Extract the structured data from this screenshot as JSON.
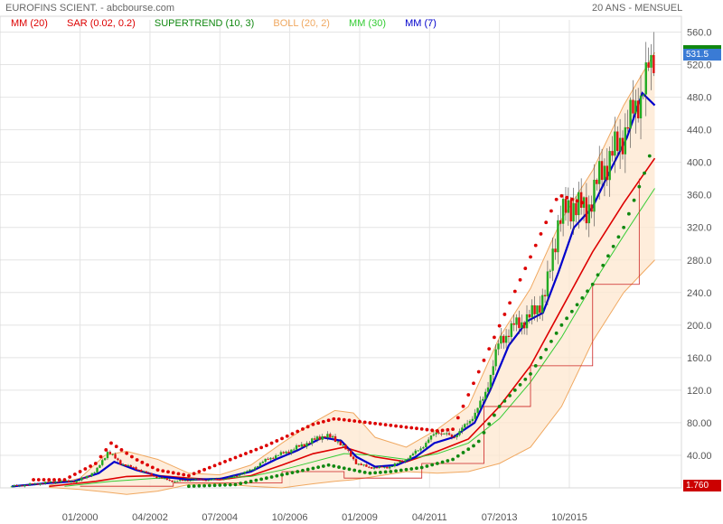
{
  "header": {
    "title": "EUROFINS SCIENT. - abcbourse.com",
    "period": "20 ANS - MENSUEL"
  },
  "legend": [
    {
      "label": "MM (20)",
      "color": "#dd0000"
    },
    {
      "label": "SAR (0.02, 0.2)",
      "color": "#dd0000"
    },
    {
      "label": "SUPERTREND (10, 3)",
      "color": "#118811"
    },
    {
      "label": "BOLL (20, 2)",
      "color": "#f0a860"
    },
    {
      "label": "MM (30)",
      "color": "#33cc33"
    },
    {
      "label": "MM (7)",
      "color": "#0000cc"
    }
  ],
  "tags": {
    "last_price": {
      "text": "531.5",
      "color": "#3a7bd5"
    },
    "green_level": {
      "text": "",
      "color": "#118811"
    },
    "bottom_value": {
      "text": "1.760",
      "color": "#cc0000"
    }
  },
  "chart_data": {
    "type": "line",
    "title": "EUROFINS SCIENT. - abcbourse.com",
    "subtitle": "20 ANS - MENSUEL",
    "x_ticks": [
      "01/2000",
      "04/2002",
      "07/2004",
      "10/2006",
      "01/2009",
      "04/2011",
      "07/2013",
      "10/2015"
    ],
    "x_tick_pos_index": [
      0,
      1,
      2,
      3,
      4,
      5,
      6,
      7
    ],
    "y_ticks": [
      40,
      80,
      120,
      160,
      200,
      240,
      280,
      320,
      360,
      400,
      440,
      480,
      520,
      560
    ],
    "y_tick_labels": [
      "40.00",
      "80.00",
      "120.0",
      "160.0",
      "200.0",
      "240.0",
      "280.0",
      "320.0",
      "360.0",
      "400.0",
      "440.0",
      "480.0",
      "520.0",
      "560.0"
    ],
    "ylim": [
      0,
      575
    ],
    "xlim": [
      1997.8,
      2019.3
    ],
    "grid": true,
    "price_anchors": [
      [
        1997.8,
        1.8
      ],
      [
        1998.6,
        5
      ],
      [
        1999.3,
        8
      ],
      [
        1999.9,
        8
      ],
      [
        2000.5,
        20
      ],
      [
        2000.9,
        45
      ],
      [
        2001.3,
        30
      ],
      [
        2001.9,
        22
      ],
      [
        2002.4,
        14
      ],
      [
        2003.0,
        8
      ],
      [
        2003.6,
        10
      ],
      [
        2004.2,
        10
      ],
      [
        2004.8,
        12
      ],
      [
        2005.5,
        22
      ],
      [
        2006.0,
        35
      ],
      [
        2006.7,
        45
      ],
      [
        2007.3,
        55
      ],
      [
        2007.9,
        65
      ],
      [
        2008.4,
        55
      ],
      [
        2008.9,
        30
      ],
      [
        2009.3,
        25
      ],
      [
        2009.9,
        25
      ],
      [
        2010.5,
        35
      ],
      [
        2011.0,
        50
      ],
      [
        2011.5,
        70
      ],
      [
        2012.0,
        62
      ],
      [
        2012.5,
        80
      ],
      [
        2013.0,
        110
      ],
      [
        2013.5,
        180
      ],
      [
        2014.0,
        200
      ],
      [
        2014.5,
        210
      ],
      [
        2015.0,
        240
      ],
      [
        2015.4,
        330
      ],
      [
        2015.9,
        350
      ],
      [
        2016.3,
        340
      ],
      [
        2016.8,
        390
      ],
      [
        2017.3,
        420
      ],
      [
        2017.8,
        460
      ],
      [
        2018.2,
        500
      ],
      [
        2018.5,
        531.5
      ]
    ],
    "series": [
      {
        "name": "MM (20)",
        "color": "#dd0000",
        "values": [
          [
            1999.0,
            1.8
          ],
          [
            2000.5,
            8
          ],
          [
            2001.5,
            14
          ],
          [
            2002.5,
            15
          ],
          [
            2003.5,
            12
          ],
          [
            2004.5,
            10
          ],
          [
            2005.5,
            15
          ],
          [
            2006.5,
            28
          ],
          [
            2007.5,
            42
          ],
          [
            2008.5,
            50
          ],
          [
            2009.5,
            38
          ],
          [
            2010.5,
            32
          ],
          [
            2011.5,
            45
          ],
          [
            2012.5,
            60
          ],
          [
            2013.5,
            100
          ],
          [
            2014.5,
            150
          ],
          [
            2015.5,
            220
          ],
          [
            2016.5,
            290
          ],
          [
            2017.5,
            350
          ],
          [
            2018.5,
            405
          ]
        ]
      },
      {
        "name": "MM (30)",
        "color": "#33cc33",
        "values": [
          [
            1999.5,
            2
          ],
          [
            2001.0,
            8
          ],
          [
            2002.5,
            12
          ],
          [
            2004.0,
            11
          ],
          [
            2005.5,
            14
          ],
          [
            2006.5,
            22
          ],
          [
            2007.5,
            32
          ],
          [
            2008.5,
            42
          ],
          [
            2009.5,
            40
          ],
          [
            2010.5,
            35
          ],
          [
            2011.5,
            42
          ],
          [
            2012.5,
            55
          ],
          [
            2013.5,
            85
          ],
          [
            2014.5,
            130
          ],
          [
            2015.5,
            185
          ],
          [
            2016.5,
            250
          ],
          [
            2017.5,
            310
          ],
          [
            2018.5,
            368
          ]
        ]
      },
      {
        "name": "MM (7)",
        "color": "#0000cc",
        "values": [
          [
            1997.8,
            1.8
          ],
          [
            1999.0,
            6
          ],
          [
            1999.8,
            8
          ],
          [
            2000.6,
            18
          ],
          [
            2001.1,
            32
          ],
          [
            2001.8,
            22
          ],
          [
            2002.6,
            14
          ],
          [
            2003.5,
            10
          ],
          [
            2004.5,
            11
          ],
          [
            2005.5,
            20
          ],
          [
            2006.3,
            35
          ],
          [
            2007.0,
            46
          ],
          [
            2007.8,
            62
          ],
          [
            2008.4,
            58
          ],
          [
            2008.9,
            38
          ],
          [
            2009.5,
            26
          ],
          [
            2010.2,
            28
          ],
          [
            2010.8,
            38
          ],
          [
            2011.4,
            55
          ],
          [
            2012.0,
            62
          ],
          [
            2012.7,
            80
          ],
          [
            2013.2,
            120
          ],
          [
            2013.8,
            175
          ],
          [
            2014.4,
            205
          ],
          [
            2014.9,
            215
          ],
          [
            2015.4,
            265
          ],
          [
            2015.9,
            320
          ],
          [
            2016.5,
            345
          ],
          [
            2017.0,
            385
          ],
          [
            2017.6,
            430
          ],
          [
            2018.1,
            485
          ],
          [
            2018.5,
            470
          ]
        ]
      },
      {
        "name": "SUPERTREND (10, 3)",
        "color": "#118811",
        "values": [
          [
            2003.5,
            2
          ],
          [
            2005.0,
            4
          ],
          [
            2006.0,
            12
          ],
          [
            2007.0,
            20
          ],
          [
            2008.0,
            28
          ],
          [
            2009.3,
            18
          ],
          [
            2010.0,
            20
          ],
          [
            2011.0,
            25
          ],
          [
            2012.0,
            35
          ],
          [
            2012.8,
            55
          ],
          [
            2013.5,
            100
          ],
          [
            2014.5,
            140
          ],
          [
            2015.5,
            200
          ],
          [
            2016.5,
            250
          ],
          [
            2017.5,
            320
          ],
          [
            2018.2,
            390
          ],
          [
            2018.5,
            430
          ]
        ]
      },
      {
        "name": "SAR (0.02, 0.2)",
        "color": "#dd0000",
        "values": [
          [
            1998.5,
            10
          ],
          [
            1999.5,
            10
          ],
          [
            2000.5,
            30
          ],
          [
            2001.0,
            55
          ],
          [
            2001.8,
            35
          ],
          [
            2002.5,
            22
          ],
          [
            2003.5,
            15
          ],
          [
            2006.0,
            52
          ],
          [
            2007.5,
            78
          ],
          [
            2008.2,
            85
          ],
          [
            2011.5,
            70
          ],
          [
            2012.0,
            72
          ],
          [
            2015.4,
            360
          ],
          [
            2016.2,
            350
          ]
        ]
      },
      {
        "name": "BOLL (20, 2)",
        "color": "#f0a860",
        "upper": [
          [
            1999.0,
            3
          ],
          [
            2000.0,
            12
          ],
          [
            2000.8,
            40
          ],
          [
            2001.5,
            45
          ],
          [
            2002.5,
            35
          ],
          [
            2003.5,
            18
          ],
          [
            2004.5,
            16
          ],
          [
            2005.5,
            28
          ],
          [
            2006.5,
            55
          ],
          [
            2007.5,
            80
          ],
          [
            2008.2,
            95
          ],
          [
            2008.8,
            92
          ],
          [
            2009.5,
            62
          ],
          [
            2010.5,
            50
          ],
          [
            2011.5,
            72
          ],
          [
            2012.5,
            100
          ],
          [
            2013.5,
            185
          ],
          [
            2014.5,
            245
          ],
          [
            2015.5,
            330
          ],
          [
            2016.5,
            390
          ],
          [
            2017.5,
            470
          ],
          [
            2018.5,
            535
          ]
        ],
        "lower": [
          [
            1999.0,
            0.5
          ],
          [
            2000.0,
            -2
          ],
          [
            2000.8,
            -5
          ],
          [
            2001.5,
            -8
          ],
          [
            2002.5,
            -4
          ],
          [
            2003.5,
            4
          ],
          [
            2004.5,
            5
          ],
          [
            2005.5,
            2
          ],
          [
            2006.5,
            0
          ],
          [
            2007.5,
            5
          ],
          [
            2008.2,
            8
          ],
          [
            2008.8,
            10
          ],
          [
            2009.5,
            14
          ],
          [
            2010.5,
            20
          ],
          [
            2011.5,
            18
          ],
          [
            2012.5,
            20
          ],
          [
            2013.5,
            30
          ],
          [
            2014.5,
            50
          ],
          [
            2015.5,
            100
          ],
          [
            2016.5,
            180
          ],
          [
            2017.5,
            240
          ],
          [
            2018.5,
            280
          ]
        ]
      }
    ]
  }
}
